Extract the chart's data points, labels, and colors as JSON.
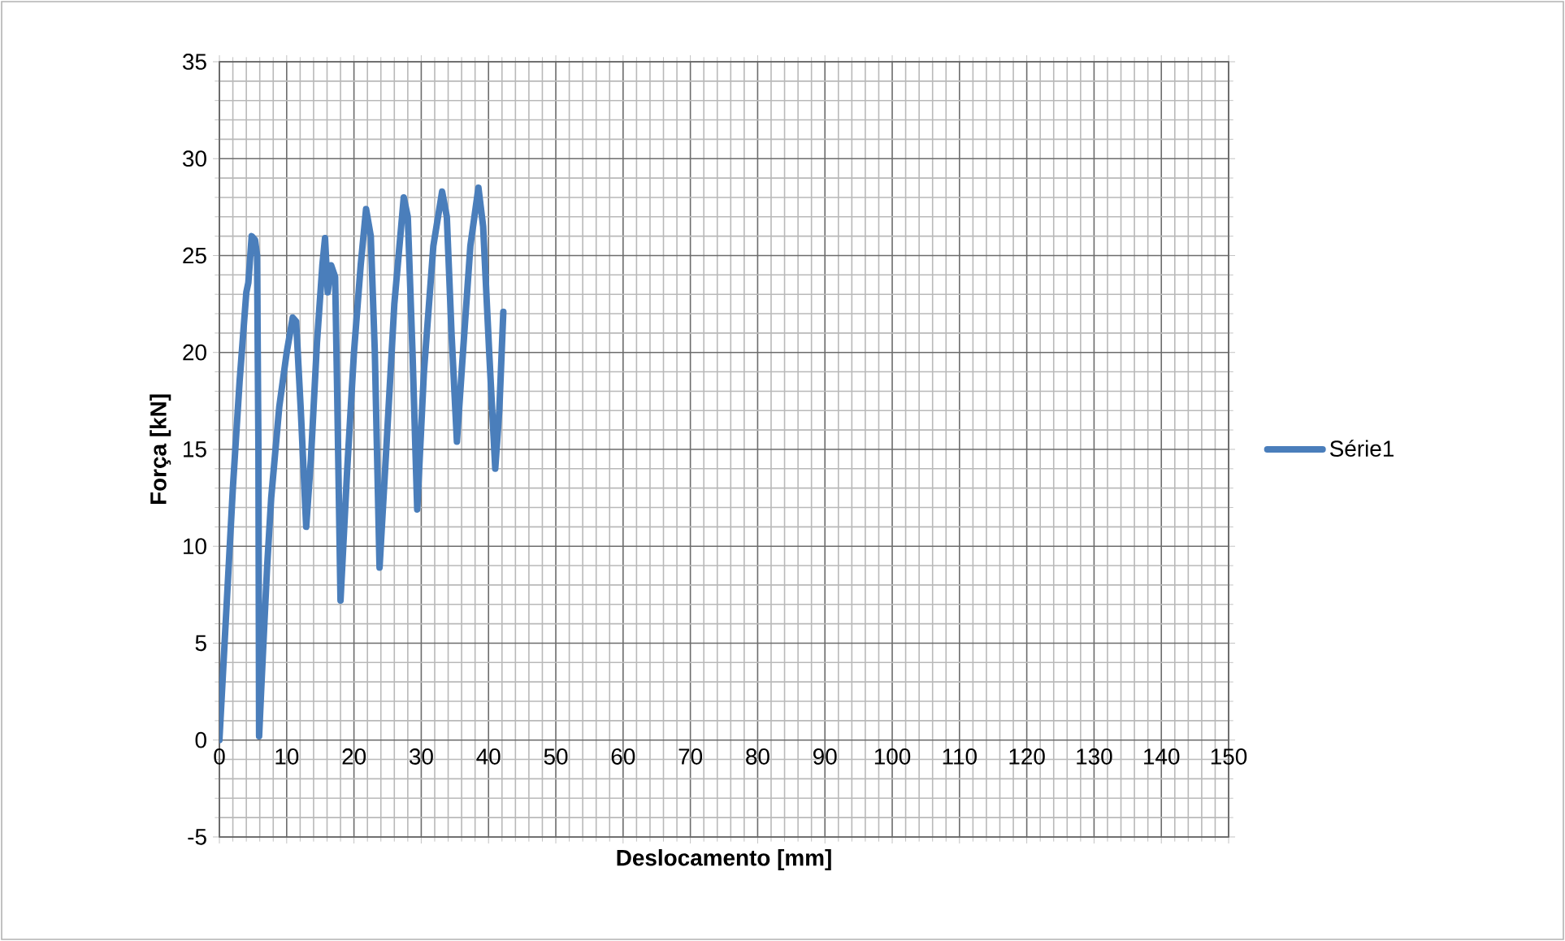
{
  "chart_data": {
    "type": "line",
    "xlabel": "Deslocamento [mm]",
    "ylabel": "Força [kN]",
    "xlim": [
      0,
      150
    ],
    "xticks": [
      0,
      10,
      20,
      30,
      40,
      50,
      60,
      70,
      80,
      90,
      100,
      110,
      120,
      130,
      140,
      150
    ],
    "ylim": [
      -5,
      35
    ],
    "yticks": [
      -5,
      0,
      5,
      10,
      15,
      20,
      25,
      30,
      35
    ],
    "grid": true,
    "legend": "right",
    "marker": "none",
    "line_style": "solid",
    "series": [
      {
        "name": "Série1",
        "color": "#4a7ebb",
        "x": [
          0,
          1.0,
          2.0,
          3.0,
          4.0,
          4.3,
          4.8,
          5.3,
          5.6,
          5.8,
          5.9,
          6.2,
          6.5,
          7.1,
          7.7,
          8.9,
          10.0,
          10.9,
          11.4,
          12.1,
          12.9,
          13.6,
          14.5,
          15.3,
          15.7,
          16.1,
          16.6,
          17.2,
          17.5,
          18.0,
          19.0,
          20.0,
          21.0,
          21.8,
          22.5,
          23.1,
          23.8,
          24.8,
          26.0,
          27.4,
          28.0,
          28.7,
          29.4,
          30.4,
          31.8,
          33.1,
          33.8,
          34.5,
          35.3,
          36.2,
          37.3,
          38.5,
          39.2,
          40.1,
          41.0,
          41.6,
          42.2
        ],
        "values": [
          0,
          6.5,
          13.0,
          18.5,
          23.1,
          23.6,
          26.0,
          25.8,
          25.0,
          15.0,
          0.2,
          2.5,
          4.7,
          9.0,
          12.5,
          17.2,
          20.0,
          21.8,
          21.6,
          17.0,
          11.0,
          14.5,
          20.5,
          24.5,
          25.9,
          23.1,
          24.5,
          23.9,
          18.0,
          7.2,
          14.0,
          20.0,
          24.5,
          27.4,
          26.0,
          20.0,
          8.9,
          15.0,
          22.5,
          28.0,
          27.0,
          20.0,
          11.9,
          19.0,
          25.5,
          28.3,
          27.0,
          21.0,
          15.4,
          20.0,
          25.5,
          28.5,
          26.5,
          20.0,
          14.0,
          17.0,
          22.1
        ]
      }
    ]
  }
}
